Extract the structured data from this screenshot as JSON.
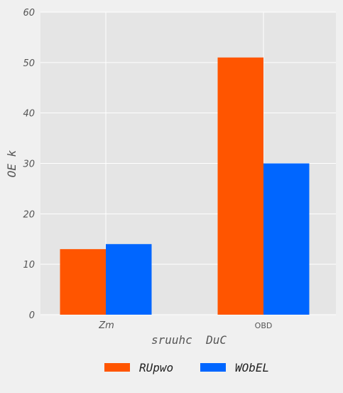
{
  "chart_data": {
    "type": "bar",
    "categories": [
      "Zm",
      "OBD"
    ],
    "series": [
      {
        "name": "RUpwo",
        "values": [
          13,
          51
        ],
        "color": "#ff5500"
      },
      {
        "name": "WObEL",
        "values": [
          14,
          30
        ],
        "color": "#0066ff"
      }
    ],
    "title": "",
    "xlabel": "sruuhc  DuC",
    "ylabel": "OE k",
    "ylim": [
      0,
      60
    ],
    "yticks": [
      0,
      10,
      20,
      30,
      40,
      50,
      60
    ],
    "grid": true,
    "legend_position": "bottom-center",
    "plot_background": "#e5e5e5"
  }
}
